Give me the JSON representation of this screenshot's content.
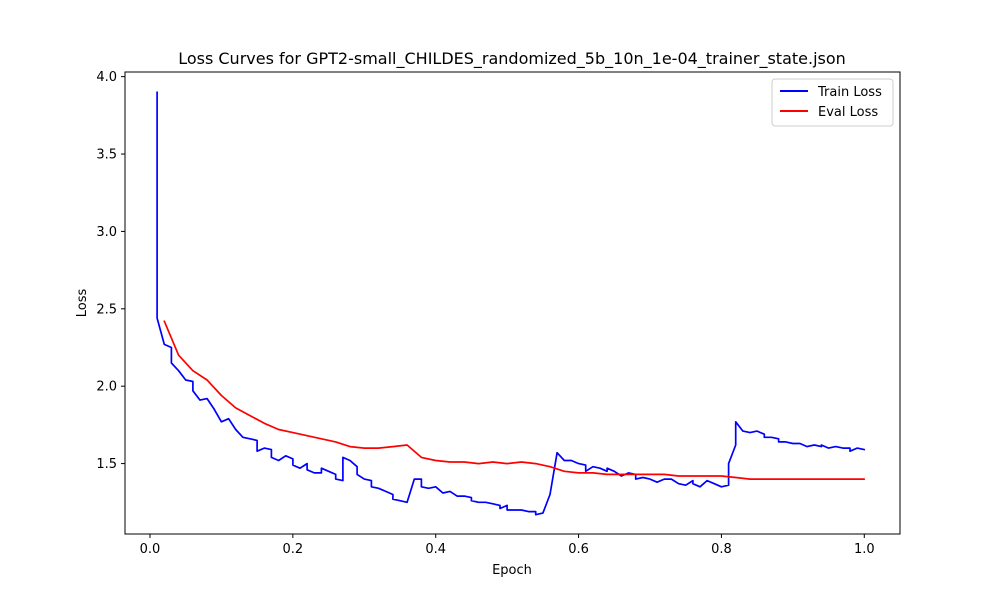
{
  "chart_data": {
    "type": "line",
    "title": "Loss Curves for GPT2-small_CHILDES_randomized_5b_10n_1e-04_trainer_state.json",
    "xlabel": "Epoch",
    "ylabel": "Loss",
    "xlim": [
      -0.035,
      1.05
    ],
    "ylim": [
      1.045,
      4.03
    ],
    "xticks": [
      0.0,
      0.2,
      0.4,
      0.6,
      0.8,
      1.0
    ],
    "xtick_labels": [
      "0.0",
      "0.2",
      "0.4",
      "0.6",
      "0.8",
      "1.0"
    ],
    "yticks": [
      1.5,
      2.0,
      2.5,
      3.0,
      3.5,
      4.0
    ],
    "ytick_labels": [
      "1.5",
      "2.0",
      "2.5",
      "3.0",
      "3.5",
      "4.0"
    ],
    "grid": false,
    "legend_position": "top-right",
    "series": [
      {
        "name": "Train Loss",
        "color": "#0000ff",
        "points": [
          [
            0.01,
            3.9
          ],
          [
            0.01,
            2.44
          ],
          [
            0.02,
            2.27
          ],
          [
            0.03,
            2.25
          ],
          [
            0.03,
            2.15
          ],
          [
            0.04,
            2.1
          ],
          [
            0.05,
            2.04
          ],
          [
            0.06,
            2.03
          ],
          [
            0.06,
            1.97
          ],
          [
            0.07,
            1.91
          ],
          [
            0.08,
            1.92
          ],
          [
            0.09,
            1.85
          ],
          [
            0.1,
            1.77
          ],
          [
            0.11,
            1.79
          ],
          [
            0.12,
            1.72
          ],
          [
            0.13,
            1.67
          ],
          [
            0.14,
            1.66
          ],
          [
            0.15,
            1.65
          ],
          [
            0.15,
            1.58
          ],
          [
            0.16,
            1.6
          ],
          [
            0.17,
            1.59
          ],
          [
            0.17,
            1.54
          ],
          [
            0.18,
            1.52
          ],
          [
            0.19,
            1.55
          ],
          [
            0.2,
            1.53
          ],
          [
            0.2,
            1.49
          ],
          [
            0.21,
            1.47
          ],
          [
            0.22,
            1.5
          ],
          [
            0.22,
            1.46
          ],
          [
            0.23,
            1.44
          ],
          [
            0.24,
            1.44
          ],
          [
            0.24,
            1.47
          ],
          [
            0.25,
            1.45
          ],
          [
            0.26,
            1.43
          ],
          [
            0.26,
            1.4
          ],
          [
            0.27,
            1.39
          ],
          [
            0.27,
            1.54
          ],
          [
            0.28,
            1.52
          ],
          [
            0.29,
            1.48
          ],
          [
            0.29,
            1.43
          ],
          [
            0.3,
            1.4
          ],
          [
            0.31,
            1.39
          ],
          [
            0.31,
            1.35
          ],
          [
            0.32,
            1.34
          ],
          [
            0.33,
            1.32
          ],
          [
            0.34,
            1.3
          ],
          [
            0.34,
            1.27
          ],
          [
            0.35,
            1.26
          ],
          [
            0.36,
            1.25
          ],
          [
            0.37,
            1.4
          ],
          [
            0.38,
            1.4
          ],
          [
            0.38,
            1.35
          ],
          [
            0.39,
            1.34
          ],
          [
            0.4,
            1.35
          ],
          [
            0.41,
            1.31
          ],
          [
            0.42,
            1.32
          ],
          [
            0.43,
            1.29
          ],
          [
            0.44,
            1.29
          ],
          [
            0.45,
            1.28
          ],
          [
            0.45,
            1.26
          ],
          [
            0.46,
            1.25
          ],
          [
            0.47,
            1.25
          ],
          [
            0.48,
            1.24
          ],
          [
            0.49,
            1.23
          ],
          [
            0.49,
            1.21
          ],
          [
            0.5,
            1.23
          ],
          [
            0.5,
            1.2
          ],
          [
            0.51,
            1.2
          ],
          [
            0.52,
            1.2
          ],
          [
            0.53,
            1.19
          ],
          [
            0.54,
            1.19
          ],
          [
            0.54,
            1.17
          ],
          [
            0.55,
            1.18
          ],
          [
            0.56,
            1.3
          ],
          [
            0.57,
            1.57
          ],
          [
            0.58,
            1.52
          ],
          [
            0.59,
            1.52
          ],
          [
            0.6,
            1.5
          ],
          [
            0.61,
            1.49
          ],
          [
            0.61,
            1.45
          ],
          [
            0.62,
            1.48
          ],
          [
            0.63,
            1.47
          ],
          [
            0.64,
            1.45
          ],
          [
            0.64,
            1.47
          ],
          [
            0.65,
            1.45
          ],
          [
            0.66,
            1.42
          ],
          [
            0.67,
            1.44
          ],
          [
            0.68,
            1.43
          ],
          [
            0.68,
            1.4
          ],
          [
            0.69,
            1.41
          ],
          [
            0.7,
            1.4
          ],
          [
            0.71,
            1.38
          ],
          [
            0.72,
            1.4
          ],
          [
            0.73,
            1.4
          ],
          [
            0.74,
            1.37
          ],
          [
            0.75,
            1.36
          ],
          [
            0.76,
            1.39
          ],
          [
            0.76,
            1.37
          ],
          [
            0.77,
            1.35
          ],
          [
            0.78,
            1.39
          ],
          [
            0.79,
            1.37
          ],
          [
            0.8,
            1.35
          ],
          [
            0.81,
            1.36
          ],
          [
            0.81,
            1.5
          ],
          [
            0.82,
            1.62
          ],
          [
            0.82,
            1.77
          ],
          [
            0.83,
            1.71
          ],
          [
            0.84,
            1.7
          ],
          [
            0.85,
            1.71
          ],
          [
            0.86,
            1.69
          ],
          [
            0.86,
            1.67
          ],
          [
            0.87,
            1.67
          ],
          [
            0.88,
            1.66
          ],
          [
            0.88,
            1.64
          ],
          [
            0.89,
            1.64
          ],
          [
            0.9,
            1.63
          ],
          [
            0.91,
            1.63
          ],
          [
            0.92,
            1.61
          ],
          [
            0.93,
            1.62
          ],
          [
            0.94,
            1.61
          ],
          [
            0.94,
            1.62
          ],
          [
            0.95,
            1.6
          ],
          [
            0.96,
            1.61
          ],
          [
            0.97,
            1.6
          ],
          [
            0.98,
            1.6
          ],
          [
            0.98,
            1.58
          ],
          [
            0.99,
            1.6
          ],
          [
            1.0,
            1.59
          ]
        ]
      },
      {
        "name": "Eval Loss",
        "color": "#ff0000",
        "points": [
          [
            0.02,
            2.42
          ],
          [
            0.04,
            2.2
          ],
          [
            0.06,
            2.1
          ],
          [
            0.08,
            2.04
          ],
          [
            0.1,
            1.94
          ],
          [
            0.12,
            1.86
          ],
          [
            0.14,
            1.81
          ],
          [
            0.16,
            1.76
          ],
          [
            0.18,
            1.72
          ],
          [
            0.2,
            1.7
          ],
          [
            0.22,
            1.68
          ],
          [
            0.24,
            1.66
          ],
          [
            0.26,
            1.64
          ],
          [
            0.28,
            1.61
          ],
          [
            0.3,
            1.6
          ],
          [
            0.32,
            1.6
          ],
          [
            0.34,
            1.61
          ],
          [
            0.36,
            1.62
          ],
          [
            0.38,
            1.54
          ],
          [
            0.4,
            1.52
          ],
          [
            0.42,
            1.51
          ],
          [
            0.44,
            1.51
          ],
          [
            0.46,
            1.5
          ],
          [
            0.48,
            1.51
          ],
          [
            0.5,
            1.5
          ],
          [
            0.52,
            1.51
          ],
          [
            0.54,
            1.5
          ],
          [
            0.56,
            1.48
          ],
          [
            0.58,
            1.45
          ],
          [
            0.6,
            1.44
          ],
          [
            0.62,
            1.44
          ],
          [
            0.64,
            1.43
          ],
          [
            0.66,
            1.43
          ],
          [
            0.68,
            1.43
          ],
          [
            0.7,
            1.43
          ],
          [
            0.72,
            1.43
          ],
          [
            0.74,
            1.42
          ],
          [
            0.76,
            1.42
          ],
          [
            0.78,
            1.42
          ],
          [
            0.8,
            1.42
          ],
          [
            0.82,
            1.41
          ],
          [
            0.84,
            1.4
          ],
          [
            0.86,
            1.4
          ],
          [
            0.88,
            1.4
          ],
          [
            0.9,
            1.4
          ],
          [
            0.92,
            1.4
          ],
          [
            0.94,
            1.4
          ],
          [
            0.96,
            1.4
          ],
          [
            0.98,
            1.4
          ],
          [
            1.0,
            1.4
          ]
        ]
      }
    ]
  }
}
